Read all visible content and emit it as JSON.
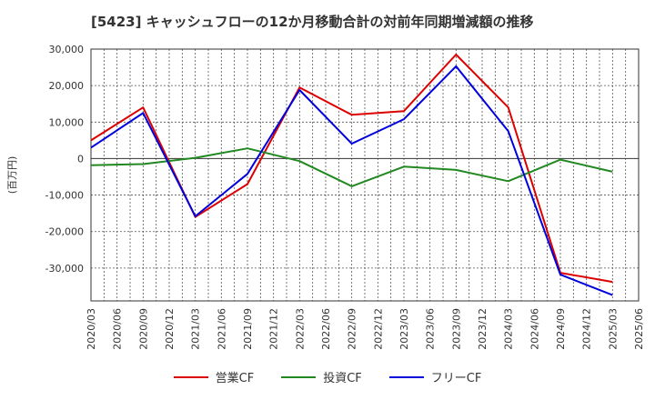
{
  "chart_data": {
    "type": "line",
    "title": "[5423]  キャッシュフローの12か月移動合計の対前年同期増減額の推移",
    "ylabel": "(百万円)",
    "xlabel": "",
    "ylim": [
      -39000,
      30000
    ],
    "yticks": [
      30000,
      20000,
      10000,
      0,
      -10000,
      -20000,
      -30000
    ],
    "ytick_labels": [
      "30,000",
      "20,000",
      "10,000",
      "0",
      "-10,000",
      "-20,000",
      "-30,000"
    ],
    "x_ticks": [
      "2020/03",
      "2020/06",
      "2020/09",
      "2020/12",
      "2021/03",
      "2021/06",
      "2021/09",
      "2021/12",
      "2022/03",
      "2022/06",
      "2022/09",
      "2022/12",
      "2023/03",
      "2023/06",
      "2023/09",
      "2023/12",
      "2024/03",
      "2024/06",
      "2024/09",
      "2024/12",
      "2025/03",
      "2025/06"
    ],
    "grid": true,
    "legend_position": "bottom",
    "series": [
      {
        "name": "営業CF",
        "color": "#dd0000",
        "points": [
          [
            "2020/03",
            5000
          ],
          [
            "2020/09",
            14000
          ],
          [
            "2021/03",
            -16000
          ],
          [
            "2021/09",
            -7000
          ],
          [
            "2022/03",
            19500
          ],
          [
            "2022/09",
            12000
          ],
          [
            "2023/03",
            13000
          ],
          [
            "2023/09",
            28500
          ],
          [
            "2024/03",
            14000
          ],
          [
            "2024/09",
            -31300
          ],
          [
            "2025/03",
            -33800
          ]
        ]
      },
      {
        "name": "投資CF",
        "color": "#228822",
        "points": [
          [
            "2020/03",
            -1800
          ],
          [
            "2020/09",
            -1500
          ],
          [
            "2021/03",
            200
          ],
          [
            "2021/09",
            2800
          ],
          [
            "2022/03",
            -700
          ],
          [
            "2022/09",
            -7600
          ],
          [
            "2023/03",
            -2200
          ],
          [
            "2023/09",
            -3100
          ],
          [
            "2024/03",
            -6200
          ],
          [
            "2024/09",
            -300
          ],
          [
            "2025/03",
            -3600
          ]
        ]
      },
      {
        "name": "フリーCF",
        "color": "#0000dd",
        "points": [
          [
            "2020/03",
            3000
          ],
          [
            "2020/09",
            12500
          ],
          [
            "2021/03",
            -15800
          ],
          [
            "2021/09",
            -4200
          ],
          [
            "2022/03",
            18800
          ],
          [
            "2022/09",
            4100
          ],
          [
            "2023/03",
            10800
          ],
          [
            "2023/09",
            25300
          ],
          [
            "2024/03",
            7500
          ],
          [
            "2024/09",
            -31800
          ],
          [
            "2025/03",
            -37400
          ]
        ]
      }
    ]
  }
}
